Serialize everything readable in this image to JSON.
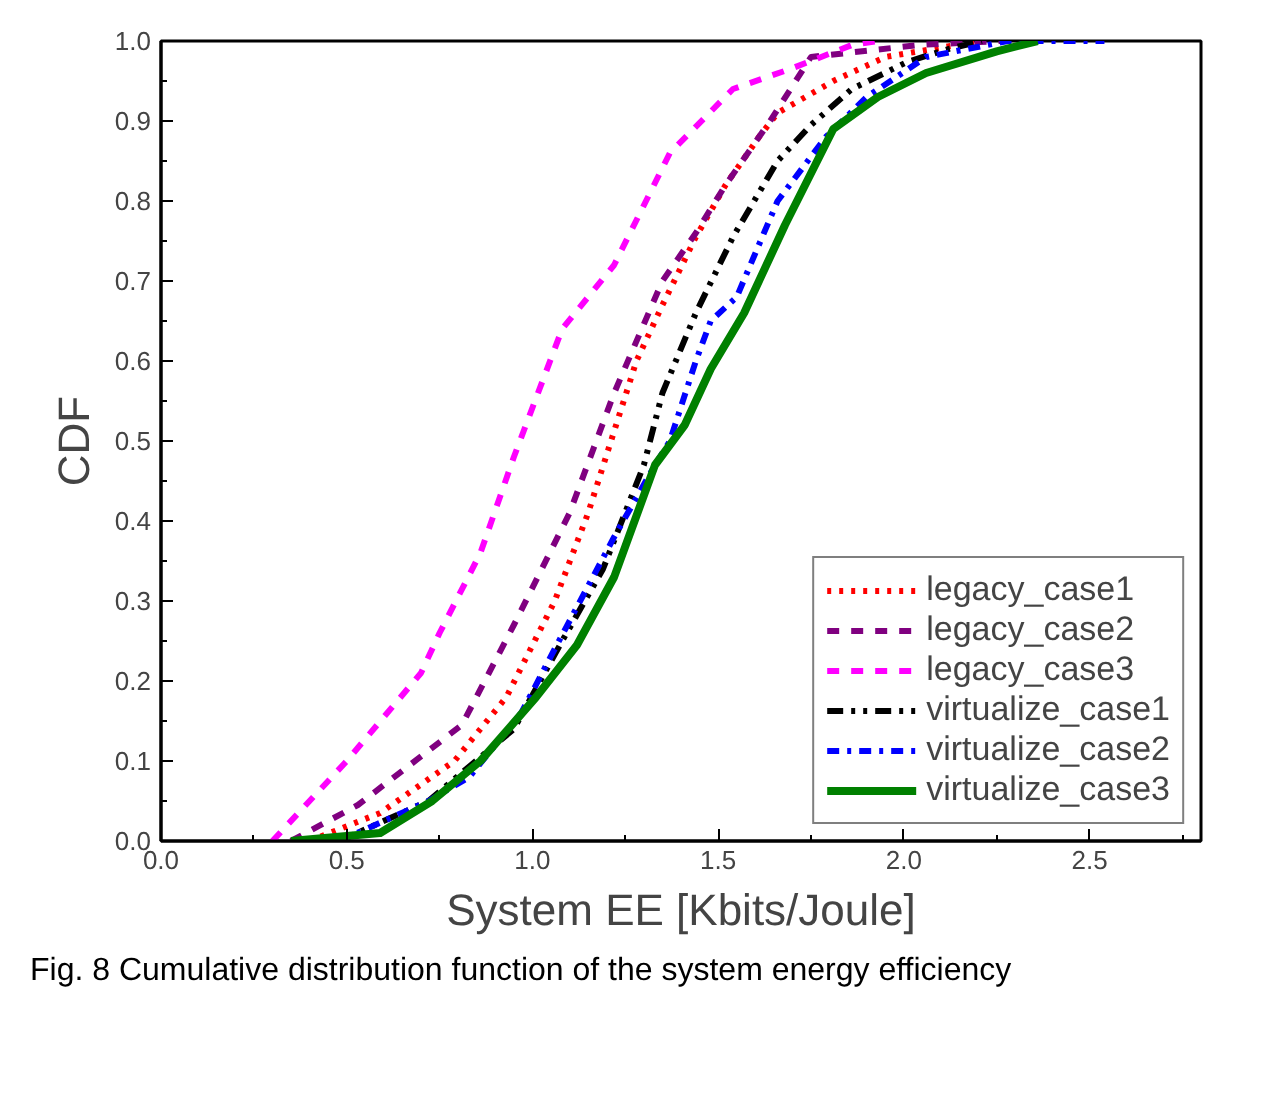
{
  "chart_data": {
    "type": "line",
    "xlabel": "System EE [Kbits/Joule]",
    "ylabel": "CDF",
    "xlim": [
      0,
      2.8
    ],
    "ylim": [
      0,
      1.0
    ],
    "xticks": [
      {
        "value": 0,
        "label": "0.0"
      },
      0.5,
      {
        "value": 1,
        "label": "1.0"
      },
      1.5,
      {
        "value": 2,
        "label": "2.0"
      },
      2.5
    ],
    "yticks": [
      {
        "value": 0,
        "label": "0.0"
      },
      0.1,
      0.2,
      0.3,
      0.4,
      0.5,
      0.6,
      0.7,
      0.8,
      0.9,
      {
        "value": 1,
        "label": "1.0"
      }
    ],
    "grid": false,
    "legend": "bottom right",
    "annotations": [
      "Fig. 8 Cumulative distribution function of the system energy efficiency"
    ],
    "series": [
      {
        "name": "legacy_case1",
        "color": "#ff0000",
        "line_style": "dotted",
        "x": [
          0.4,
          0.59,
          0.79,
          0.93,
          1.06,
          1.15,
          1.28,
          1.35,
          1.44,
          1.52,
          1.61,
          1.66,
          1.81,
          1.95,
          2.14,
          2.21
        ],
        "values": [
          0,
          0.035,
          0.1,
          0.18,
          0.3,
          0.41,
          0.6,
          0.67,
          0.755,
          0.82,
          0.88,
          0.91,
          0.95,
          0.98,
          0.995,
          1.0
        ]
      },
      {
        "name": "legacy_case2",
        "color": "#800080",
        "line_style": "dashed",
        "x": [
          0.35,
          0.53,
          0.81,
          0.95,
          1.1,
          1.22,
          1.35,
          1.44,
          1.52,
          1.64,
          1.75,
          2.04,
          2.26
        ],
        "values": [
          0,
          0.045,
          0.145,
          0.27,
          0.41,
          0.56,
          0.7,
          0.76,
          0.82,
          0.9,
          0.98,
          0.995,
          1.0
        ]
      },
      {
        "name": "legacy_case3",
        "color": "#ff00ff",
        "line_style": "dashed",
        "x": [
          0.3,
          0.5,
          0.7,
          0.75,
          0.86,
          0.95,
          1.08,
          1.22,
          1.37,
          1.54,
          1.7,
          1.86,
          1.93
        ],
        "values": [
          0,
          0.1,
          0.21,
          0.26,
          0.36,
          0.48,
          0.64,
          0.72,
          0.86,
          0.94,
          0.966,
          0.995,
          1.0
        ]
      },
      {
        "name": "virtualize_case1",
        "color": "#000000",
        "line_style": "dashdotdot",
        "x": [
          0.48,
          0.72,
          0.95,
          1.08,
          1.19,
          1.3,
          1.35,
          1.44,
          1.54,
          1.66,
          1.75,
          1.86,
          2.01,
          2.12,
          2.21
        ],
        "values": [
          0,
          0.05,
          0.14,
          0.25,
          0.34,
          0.47,
          0.56,
          0.66,
          0.755,
          0.85,
          0.895,
          0.94,
          0.974,
          0.99,
          1.0
        ]
      },
      {
        "name": "virtualize_case2",
        "color": "#0000ff",
        "line_style": "dashdot",
        "x": [
          0.48,
          0.72,
          0.83,
          0.97,
          1.06,
          1.22,
          1.33,
          1.37,
          1.44,
          1.48,
          1.55,
          1.66,
          1.79,
          1.9,
          2.06,
          2.28,
          2.54
        ],
        "values": [
          0,
          0.05,
          0.08,
          0.16,
          0.24,
          0.38,
          0.47,
          0.5,
          0.6,
          0.65,
          0.68,
          0.8,
          0.88,
          0.93,
          0.98,
          1.0,
          1.0
        ]
      },
      {
        "name": "virtualize_case3",
        "color": "#008000",
        "line_style": "solid",
        "x": [
          0.35,
          0.59,
          0.73,
          0.86,
          1.01,
          1.12,
          1.22,
          1.33,
          1.41,
          1.48,
          1.57,
          1.68,
          1.81,
          1.93,
          2.06,
          2.25,
          2.36
        ],
        "values": [
          0,
          0.01,
          0.05,
          0.1,
          0.18,
          0.245,
          0.33,
          0.47,
          0.52,
          0.59,
          0.66,
          0.77,
          0.89,
          0.93,
          0.96,
          0.987,
          1.0
        ]
      }
    ]
  }
}
